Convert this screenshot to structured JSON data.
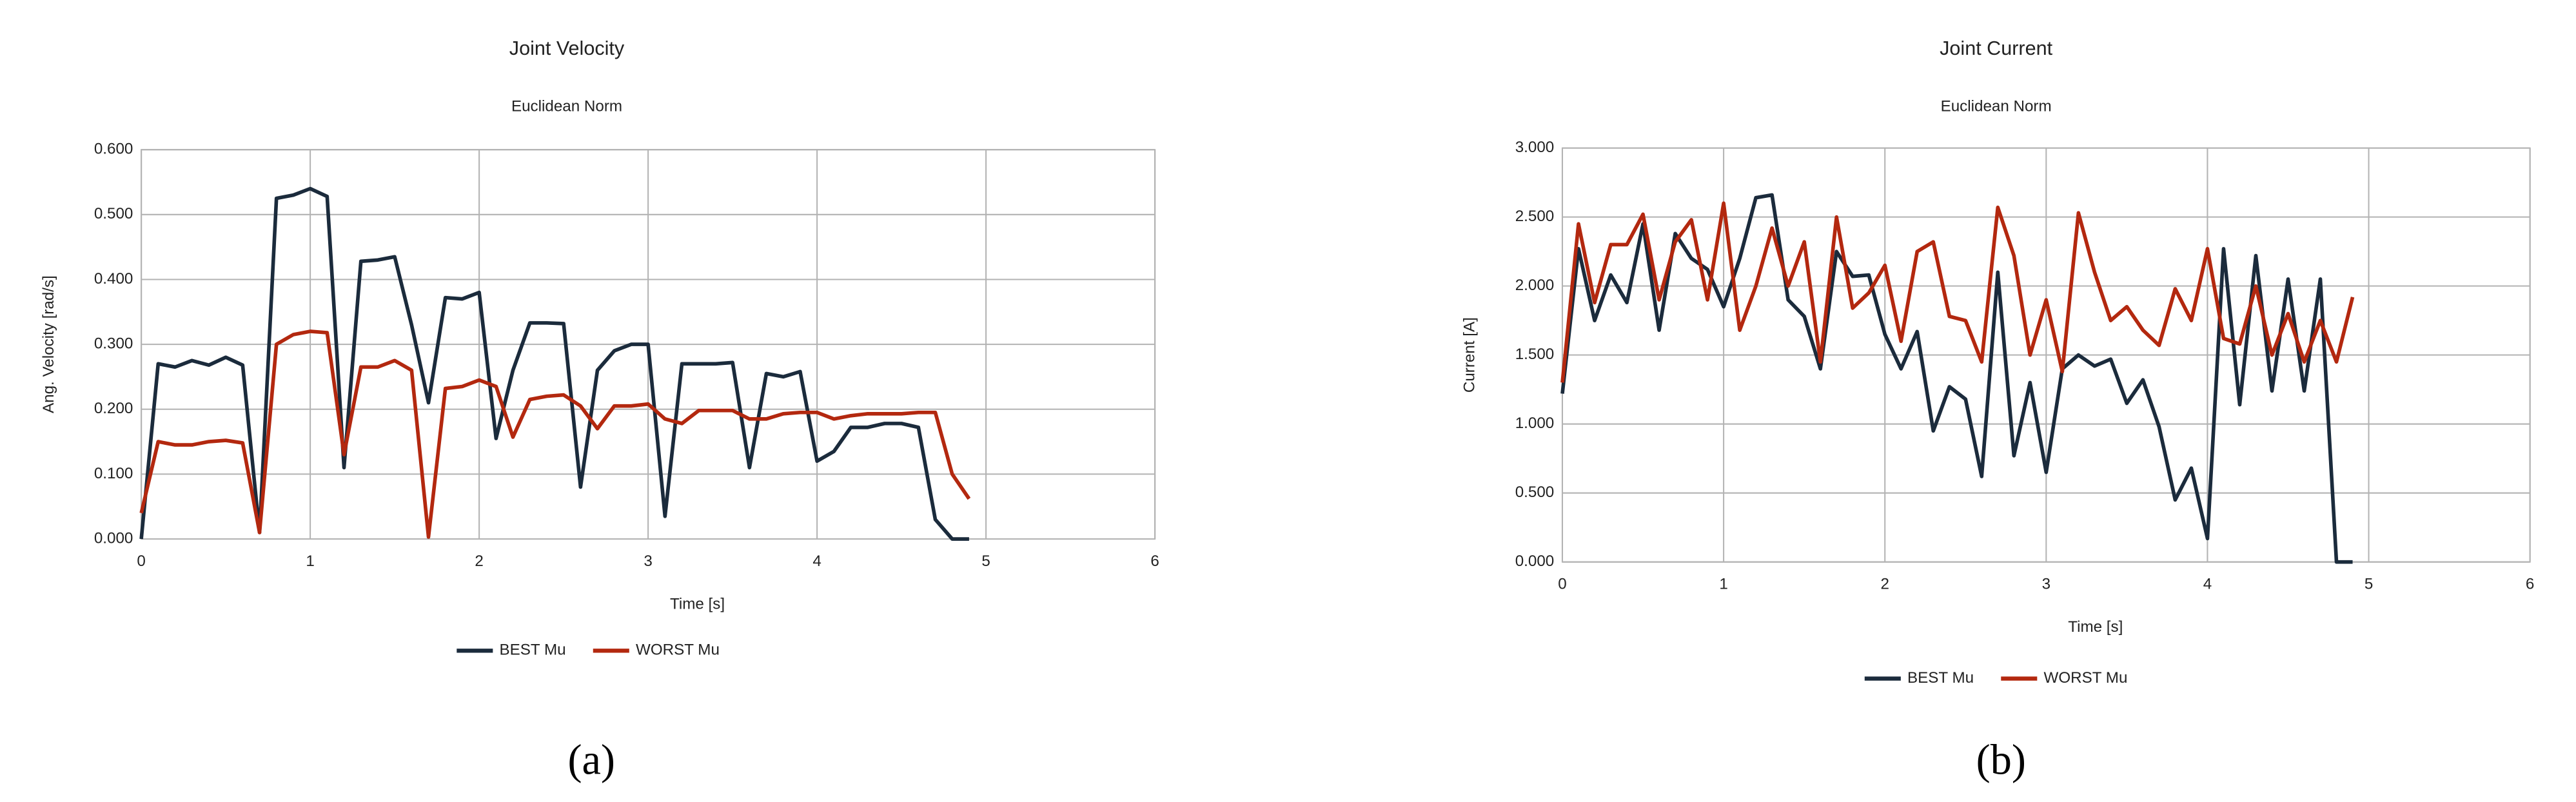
{
  "chart_data": [
    {
      "type": "line",
      "title": "Joint Velocity",
      "subtitle": "Euclidean Norm",
      "xlabel": "Time [s]",
      "ylabel": "Ang. Velocity [rad/s]",
      "caption": "(a)",
      "x": [
        0,
        0.1,
        0.2,
        0.3,
        0.4,
        0.5,
        0.6,
        0.7,
        0.8,
        0.9,
        1.0,
        1.1,
        1.2,
        1.3,
        1.4,
        1.5,
        1.6,
        1.7,
        1.8,
        1.9,
        2.0,
        2.1,
        2.2,
        2.3,
        2.4,
        2.5,
        2.6,
        2.7,
        2.8,
        2.9,
        3.0,
        3.1,
        3.2,
        3.3,
        3.4,
        3.5,
        3.6,
        3.7,
        3.8,
        3.9,
        4.0,
        4.1,
        4.2,
        4.3,
        4.4,
        4.5,
        4.6,
        4.7,
        4.8,
        4.9
      ],
      "series": [
        {
          "name": "BEST Mu",
          "color": "#1b2b3c",
          "values": [
            0,
            0.27,
            0.265,
            0.275,
            0.268,
            0.28,
            0.268,
            0.01,
            0.525,
            0.53,
            0.54,
            0.528,
            0.11,
            0.428,
            0.43,
            0.435,
            0.33,
            0.21,
            0.372,
            0.37,
            0.38,
            0.155,
            0.26,
            0.333,
            0.333,
            0.332,
            0.08,
            0.26,
            0.29,
            0.3,
            0.3,
            0.035,
            0.27,
            0.27,
            0.27,
            0.272,
            0.11,
            0.255,
            0.25,
            0.258,
            0.12,
            0.135,
            0.172,
            0.172,
            0.178,
            0.178,
            0.172,
            0.03,
            0.0,
            0.0
          ]
        },
        {
          "name": "WORST Mu",
          "color": "#b3280f",
          "values": [
            0.04,
            0.15,
            0.145,
            0.145,
            0.15,
            0.152,
            0.148,
            0.01,
            0.3,
            0.315,
            0.32,
            0.318,
            0.13,
            0.265,
            0.265,
            0.275,
            0.26,
            0.003,
            0.232,
            0.235,
            0.245,
            0.235,
            0.157,
            0.215,
            0.22,
            0.222,
            0.205,
            0.17,
            0.205,
            0.205,
            0.208,
            0.185,
            0.178,
            0.198,
            0.198,
            0.198,
            0.185,
            0.185,
            0.193,
            0.195,
            0.195,
            0.185,
            0.19,
            0.193,
            0.193,
            0.193,
            0.195,
            0.195,
            0.1,
            0.062
          ]
        }
      ],
      "xlim": [
        0,
        6
      ],
      "xticks": [
        0,
        1,
        2,
        3,
        4,
        5,
        6
      ],
      "ylim": [
        0,
        0.6
      ],
      "yticks": [
        {
          "value": 0,
          "label": "0.000"
        },
        {
          "value": 0.1,
          "label": "0.100"
        },
        {
          "value": 0.2,
          "label": "0.200"
        },
        {
          "value": 0.3,
          "label": "0.300"
        },
        {
          "value": 0.4,
          "label": "0.400"
        },
        {
          "value": 0.5,
          "label": "0.500"
        },
        {
          "value": 0.6,
          "label": "0.600"
        }
      ],
      "grid": true,
      "legend": "bottom"
    },
    {
      "type": "line",
      "title": "Joint Current",
      "subtitle": "Euclidean Norm",
      "xlabel": "Time [s]",
      "ylabel": "Current [A]",
      "caption": "(b)",
      "x": [
        0,
        0.1,
        0.2,
        0.3,
        0.4,
        0.5,
        0.6,
        0.7,
        0.8,
        0.9,
        1.0,
        1.1,
        1.2,
        1.3,
        1.4,
        1.5,
        1.6,
        1.7,
        1.8,
        1.9,
        2.0,
        2.1,
        2.2,
        2.3,
        2.4,
        2.5,
        2.6,
        2.7,
        2.8,
        2.9,
        3.0,
        3.1,
        3.2,
        3.3,
        3.4,
        3.5,
        3.6,
        3.7,
        3.8,
        3.9,
        4.0,
        4.1,
        4.2,
        4.3,
        4.4,
        4.5,
        4.6,
        4.7,
        4.8,
        4.9
      ],
      "series": [
        {
          "name": "BEST Mu",
          "color": "#1b2b3c",
          "values": [
            1.22,
            2.27,
            1.75,
            2.08,
            1.88,
            2.45,
            1.68,
            2.38,
            2.2,
            2.12,
            1.85,
            2.2,
            2.64,
            2.66,
            1.9,
            1.78,
            1.4,
            2.25,
            2.07,
            2.08,
            1.65,
            1.4,
            1.67,
            0.95,
            1.27,
            1.18,
            0.62,
            2.1,
            0.77,
            1.3,
            0.65,
            1.4,
            1.5,
            1.42,
            1.47,
            1.15,
            1.32,
            0.98,
            0.45,
            0.68,
            0.17,
            2.27,
            1.14,
            2.22,
            1.24,
            2.05,
            1.24,
            2.05,
            0.0,
            0.0
          ]
        },
        {
          "name": "WORST Mu",
          "color": "#b3280f",
          "values": [
            1.3,
            2.45,
            1.88,
            2.3,
            2.3,
            2.52,
            1.9,
            2.32,
            2.48,
            1.9,
            2.6,
            1.68,
            2.0,
            2.42,
            2.0,
            2.32,
            1.45,
            2.5,
            1.84,
            1.95,
            2.15,
            1.6,
            2.25,
            2.32,
            1.78,
            1.75,
            1.45,
            2.57,
            2.22,
            1.5,
            1.9,
            1.38,
            2.53,
            2.1,
            1.75,
            1.85,
            1.68,
            1.57,
            1.98,
            1.75,
            2.27,
            1.62,
            1.58,
            2.0,
            1.5,
            1.8,
            1.45,
            1.75,
            1.45,
            1.92
          ]
        }
      ],
      "xlim": [
        0,
        6
      ],
      "xticks": [
        0,
        1,
        2,
        3,
        4,
        5,
        6
      ],
      "ylim": [
        0,
        3
      ],
      "yticks": [
        {
          "value": 0,
          "label": "0.000"
        },
        {
          "value": 0.5,
          "label": "0.500"
        },
        {
          "value": 1,
          "label": "1.000"
        },
        {
          "value": 1.5,
          "label": "1.500"
        },
        {
          "value": 2,
          "label": "2.000"
        },
        {
          "value": 2.5,
          "label": "2.500"
        },
        {
          "value": 3,
          "label": "3.000"
        }
      ],
      "grid": true,
      "legend": "bottom"
    }
  ]
}
